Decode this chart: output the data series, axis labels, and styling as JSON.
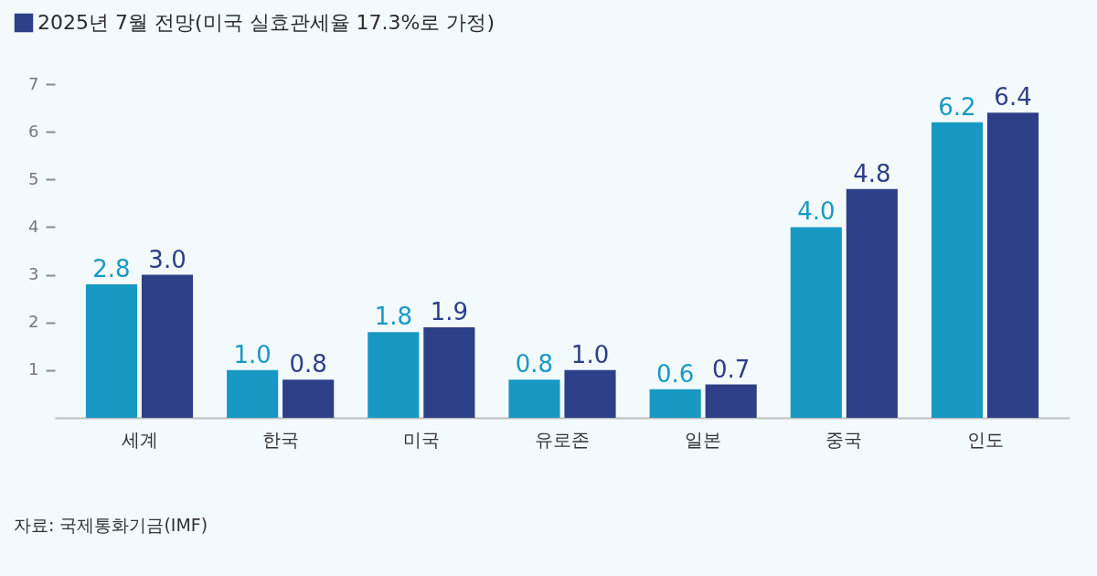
{
  "chart_data": {
    "type": "bar",
    "categories": [
      "세계",
      "한국",
      "미국",
      "유로존",
      "일본",
      "중국",
      "인도"
    ],
    "series": [
      {
        "color": "#1899c4",
        "values": [
          2.8,
          1.0,
          1.8,
          0.8,
          0.6,
          4.0,
          6.2
        ],
        "value_labels": [
          "2.8",
          "1.0",
          "1.8",
          "0.8",
          "0.6",
          "4.0",
          "6.2"
        ]
      },
      {
        "name": "2025년 7월 전망(미국 실효관세율 17.3%로 가정)",
        "color": "#2d3f87",
        "values": [
          3.0,
          0.8,
          1.9,
          1.0,
          0.7,
          4.8,
          6.4
        ],
        "value_labels": [
          "3.0",
          "0.8",
          "1.9",
          "1.0",
          "0.7",
          "4.8",
          "6.4"
        ]
      }
    ],
    "ylim": [
      0,
      7
    ],
    "yticks": [
      1,
      2,
      3,
      4,
      5,
      6,
      7
    ],
    "grid": false,
    "legend": "top left",
    "annotations": [
      "자료: 국제통화기금(IMF)"
    ]
  }
}
